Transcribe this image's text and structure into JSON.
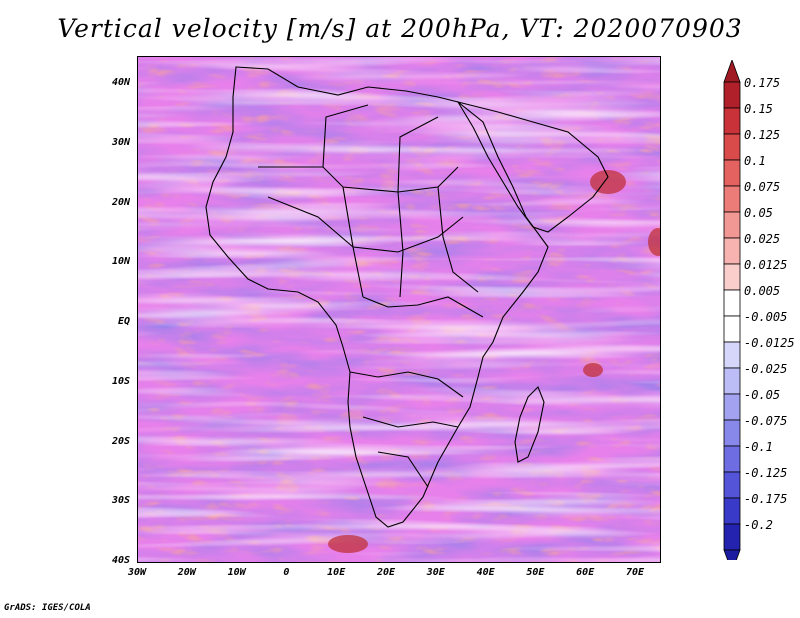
{
  "title": "Vertical velocity [m/s] at 200hPa, VT: 2020070903",
  "credit": "GrADS: IGES/COLA",
  "lat_ticks": [
    "40N",
    "30N",
    "20N",
    "10N",
    "EQ",
    "10S",
    "20S",
    "30S",
    "40S"
  ],
  "lon_ticks": [
    "30W",
    "20W",
    "10W",
    "0",
    "10E",
    "20E",
    "30E",
    "40E",
    "50E",
    "60E",
    "70E"
  ],
  "colorbar": {
    "levels": [
      "0.175",
      "0.15",
      "0.125",
      "0.1",
      "0.075",
      "0.05",
      "0.025",
      "0.0125",
      "0.005",
      "-0.005",
      "-0.0125",
      "-0.025",
      "-0.05",
      "-0.075",
      "-0.1",
      "-0.125",
      "-0.175",
      "-0.2"
    ],
    "colors": [
      "#b0202a",
      "#c83238",
      "#d94a4a",
      "#e4625f",
      "#ec7c78",
      "#f29894",
      "#f6b3b0",
      "#facecb",
      "#ffffff",
      "#ffffff",
      "#d6d6fa",
      "#bcbcf6",
      "#a2a2f0",
      "#8888ea",
      "#6e6ee2",
      "#5454d8",
      "#3a3ac8",
      "#2323b0"
    ],
    "top_arrow_color": "#a01a24",
    "bottom_arrow_color": "#1c1ca0"
  }
}
